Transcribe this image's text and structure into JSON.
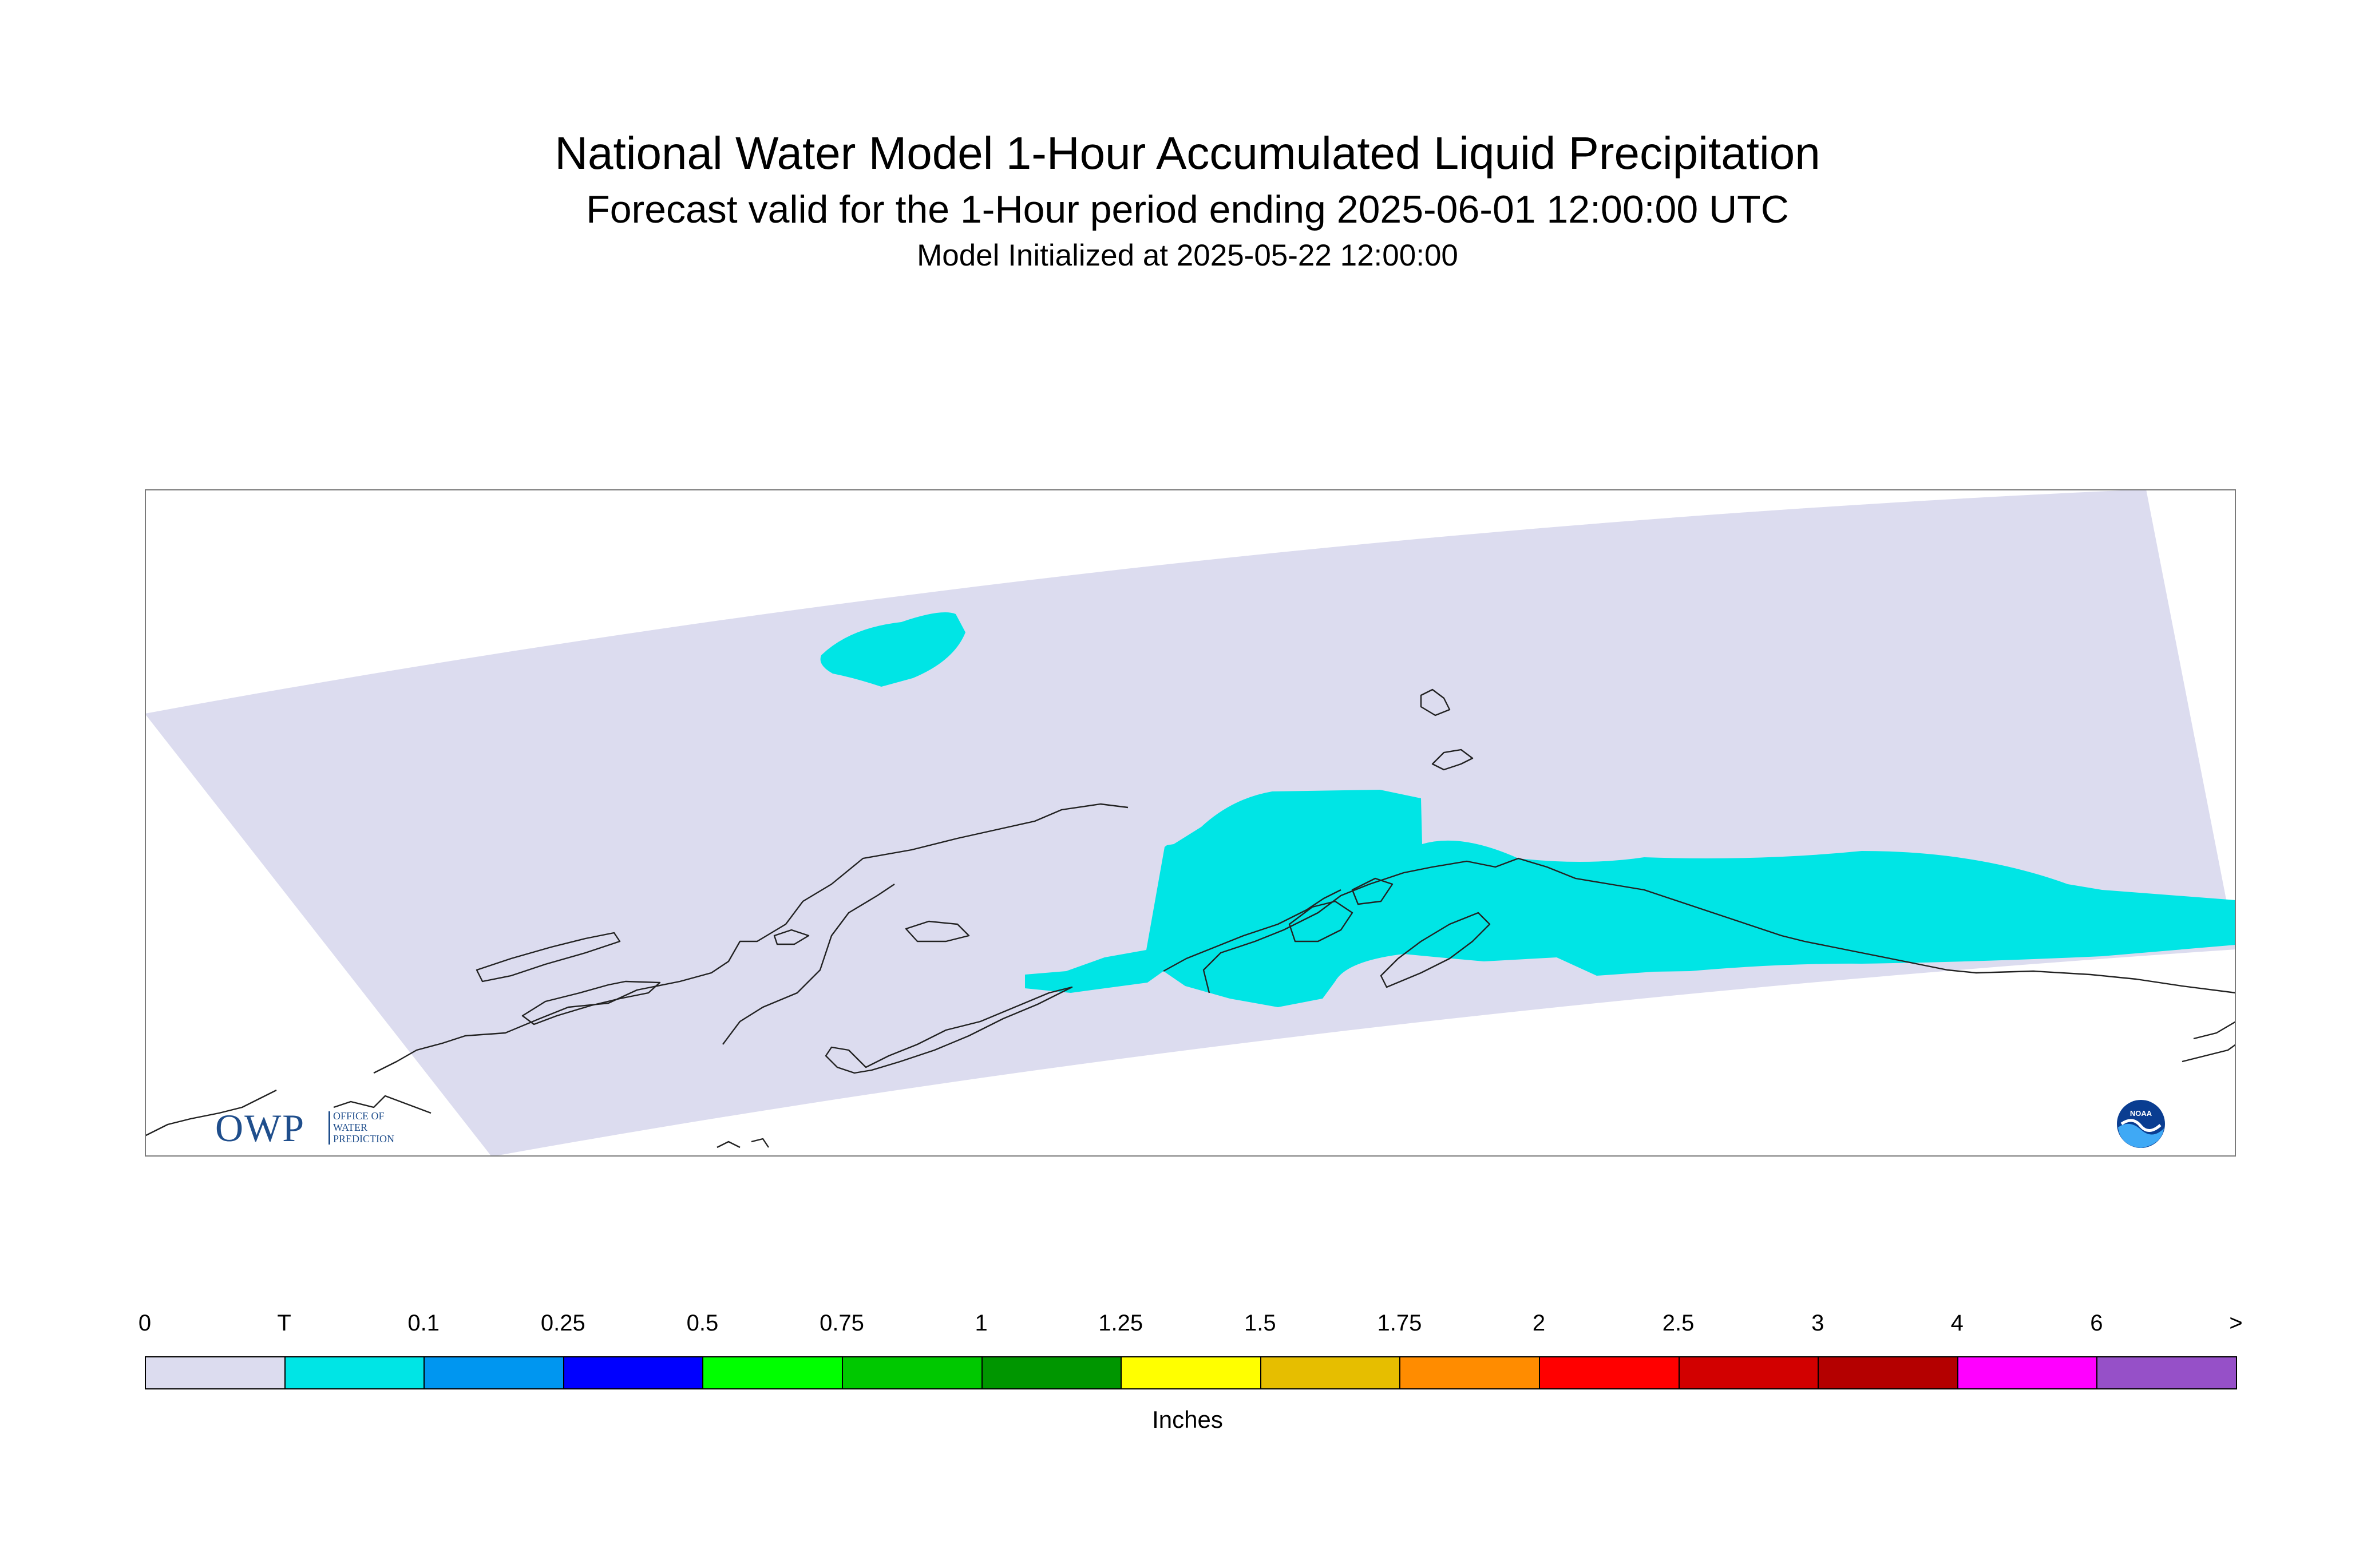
{
  "title": "National Water Model 1-Hour Accumulated Liquid Precipitation",
  "subtitle": "Forecast valid for the 1-Hour period ending 2025-06-01 12:00:00 UTC",
  "init_line": "Model Initialized at 2025-05-22 12:00:00",
  "map": {
    "region": "Alaska",
    "domain_fill": "#dcdcef",
    "precip_fill": "#00e5e5",
    "coastline_color": "#222222"
  },
  "logos": {
    "owp": {
      "big": "OWP",
      "lines": [
        "OFFICE OF",
        "WATER",
        "PREDICTION"
      ],
      "color": "#1f4e8c"
    },
    "noaa": {
      "text": "NOAA",
      "icon": "noaa-seal-icon"
    }
  },
  "legend": {
    "units": "Inches",
    "labels": [
      "0",
      "T",
      "0.1",
      "0.25",
      "0.5",
      "0.75",
      "1",
      "1.25",
      "1.5",
      "1.75",
      "2",
      "2.5",
      "3",
      "4",
      "6",
      ">"
    ],
    "colors": [
      "#dcdcef",
      "#00e5e5",
      "#0096f0",
      "#0000ff",
      "#00ff00",
      "#00c800",
      "#009600",
      "#ffff00",
      "#e6be00",
      "#ff8c00",
      "#ff0000",
      "#d20000",
      "#b40000",
      "#ff00ff",
      "#9650c8"
    ]
  }
}
